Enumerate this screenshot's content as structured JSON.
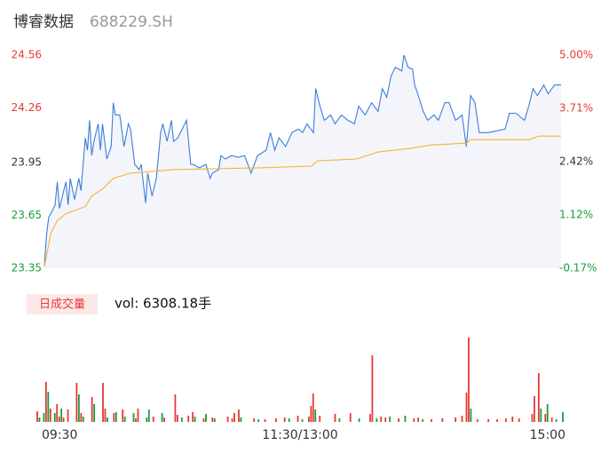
{
  "chart_data": [
    {
      "type": "line",
      "title": "博睿数据",
      "subtitle": "688229.SH",
      "xlim": [
        0,
        240
      ],
      "ylim": [
        23.35,
        24.56
      ],
      "yticks": [
        24.56,
        24.26,
        23.95,
        23.65,
        23.35
      ],
      "ytick_colors": [
        "#e53935",
        "#e53935",
        "#333333",
        "#1a9c3c",
        "#1a9c3c"
      ],
      "y2lim": [
        -0.17,
        5.0
      ],
      "y2ticks": [
        {
          "value": 5.0,
          "label": "5.00%"
        },
        {
          "value": 3.71,
          "label": "3.71%"
        },
        {
          "value": 2.42,
          "label": "2.42%"
        },
        {
          "value": 1.12,
          "label": "1.12%"
        },
        {
          "value": -0.17,
          "label": "-0.17%"
        }
      ],
      "fill": "#f3f5fa",
      "series": [
        {
          "color": "#3b7ddd",
          "fill": true,
          "x": [
            0,
            1,
            2,
            3,
            5,
            6,
            7,
            9,
            10,
            11,
            12,
            14,
            16,
            17,
            19,
            20,
            21,
            22,
            23,
            25,
            26,
            27,
            29,
            31,
            32,
            33,
            35,
            37,
            39,
            40,
            42,
            44,
            45,
            47,
            48,
            50,
            52,
            54,
            55,
            57,
            59,
            60,
            62,
            64,
            66,
            68,
            69,
            72,
            75,
            77,
            78,
            81,
            82,
            84,
            87,
            90,
            93,
            96,
            99,
            103,
            105,
            107,
            109,
            112,
            115,
            118,
            120,
            122,
            125,
            126,
            128,
            130,
            133,
            135,
            138,
            141,
            144,
            146,
            149,
            152,
            155,
            157,
            159,
            161,
            163,
            166,
            167,
            169,
            171,
            172,
            174,
            176,
            178,
            181,
            183,
            186,
            188,
            191,
            194,
            196,
            198,
            200,
            202,
            206,
            210,
            214,
            216,
            219,
            223,
            225,
            227,
            229,
            232,
            234,
            237,
            240
          ],
          "values": [
            23.36,
            23.54,
            23.64,
            23.66,
            23.71,
            23.84,
            23.69,
            23.79,
            23.84,
            23.71,
            23.86,
            23.74,
            23.86,
            23.79,
            24.09,
            24.02,
            24.19,
            23.99,
            24.07,
            24.17,
            24.02,
            24.17,
            23.97,
            24.04,
            24.29,
            24.22,
            24.22,
            24.04,
            24.17,
            24.14,
            23.94,
            23.91,
            23.94,
            23.72,
            23.89,
            23.76,
            23.86,
            24.12,
            24.17,
            24.07,
            24.19,
            24.07,
            24.09,
            24.14,
            24.19,
            23.94,
            23.94,
            23.92,
            23.94,
            23.86,
            23.89,
            23.91,
            23.99,
            23.97,
            23.99,
            23.98,
            23.99,
            23.89,
            23.99,
            24.02,
            24.12,
            24.02,
            24.09,
            24.04,
            24.12,
            24.14,
            24.12,
            24.17,
            24.12,
            24.37,
            24.27,
            24.19,
            24.22,
            24.17,
            24.22,
            24.19,
            24.17,
            24.27,
            24.22,
            24.29,
            24.24,
            24.37,
            24.32,
            24.44,
            24.49,
            24.47,
            24.56,
            24.49,
            24.48,
            24.39,
            24.32,
            24.24,
            24.19,
            24.22,
            24.19,
            24.29,
            24.29,
            24.19,
            24.22,
            24.04,
            24.33,
            24.29,
            24.12,
            24.12,
            24.13,
            24.14,
            24.23,
            24.23,
            24.19,
            24.27,
            24.37,
            24.33,
            24.39,
            24.34,
            24.39,
            24.39
          ]
        },
        {
          "color": "#f5b335",
          "fill": false,
          "x": [
            0,
            3,
            6,
            10,
            19,
            22,
            27,
            32,
            40,
            60,
            100,
            124,
            127,
            145,
            155,
            170,
            180,
            196,
            198,
            225,
            230,
            240
          ],
          "values": [
            23.36,
            23.55,
            23.62,
            23.66,
            23.7,
            23.76,
            23.8,
            23.86,
            23.89,
            23.91,
            23.92,
            23.93,
            23.96,
            23.97,
            24.01,
            24.03,
            24.05,
            24.06,
            24.08,
            24.08,
            24.1,
            24.1
          ]
        }
      ]
    },
    {
      "type": "bar",
      "title": "日成交量",
      "subtitle": "vol: 6308.18手",
      "xlim": [
        0,
        240
      ],
      "ylim": [
        0,
        400
      ],
      "xticks": [
        {
          "value": 0,
          "label": "09:30"
        },
        {
          "value": 120,
          "label": "11:30/13:00"
        },
        {
          "value": 240,
          "label": "15:00"
        }
      ],
      "x": [
        0,
        1,
        3,
        4,
        5,
        6,
        8,
        9,
        10,
        11,
        12,
        14,
        18,
        19,
        20,
        21,
        25,
        26,
        30,
        31,
        32,
        35,
        36,
        39,
        40,
        44,
        45,
        46,
        50,
        51,
        53,
        57,
        58,
        63,
        64,
        66,
        69,
        71,
        72,
        76,
        77,
        80,
        81,
        87,
        89,
        90,
        92,
        93,
        99,
        101,
        104,
        109,
        113,
        115,
        119,
        121,
        124,
        125,
        126,
        127,
        129,
        136,
        138,
        143,
        147,
        152,
        153,
        155,
        157,
        159,
        161,
        165,
        168,
        172,
        174,
        176,
        180,
        185,
        191,
        194,
        196,
        197,
        198,
        201,
        206,
        210,
        214,
        217,
        220,
        226,
        227,
        229,
        230,
        232,
        233,
        235,
        237,
        240
      ],
      "values": [
        48,
        20,
        40,
        180,
        136,
        60,
        40,
        80,
        24,
        60,
        20,
        56,
        176,
        124,
        40,
        24,
        112,
        80,
        176,
        60,
        20,
        40,
        44,
        56,
        24,
        40,
        16,
        60,
        20,
        56,
        24,
        40,
        20,
        124,
        32,
        20,
        28,
        44,
        24,
        16,
        36,
        20,
        16,
        24,
        16,
        40,
        56,
        20,
        16,
        12,
        12,
        16,
        20,
        16,
        28,
        12,
        24,
        72,
        128,
        56,
        28,
        36,
        16,
        40,
        16,
        36,
        300,
        16,
        24,
        20,
        24,
        16,
        28,
        16,
        20,
        12,
        12,
        16,
        20,
        28,
        132,
        380,
        60,
        12,
        12,
        12,
        16,
        24,
        16,
        36,
        116,
        220,
        60,
        36,
        80,
        20,
        12,
        44
      ],
      "colors": [
        "#e53935",
        "#1a9c3c",
        "#1a9c3c",
        "#e53935",
        "#1a9c3c",
        "#e53935",
        "#1a9c3c",
        "#e53935",
        "#e53935",
        "#1a9c3c",
        "#e53935",
        "#e53935",
        "#e53935",
        "#1a9c3c",
        "#e53935",
        "#1a9c3c",
        "#e53935",
        "#1a9c3c",
        "#e53935",
        "#e53935",
        "#1a9c3c",
        "#e53935",
        "#1a9c3c",
        "#e53935",
        "#1a9c3c",
        "#1a9c3c",
        "#e53935",
        "#e53935",
        "#1a9c3c",
        "#1a9c3c",
        "#e53935",
        "#1a9c3c",
        "#e53935",
        "#e53935",
        "#e53935",
        "#1a9c3c",
        "#e53935",
        "#e53935",
        "#1a9c3c",
        "#e53935",
        "#1a9c3c",
        "#e53935",
        "#1a9c3c",
        "#e53935",
        "#e53935",
        "#e53935",
        "#e53935",
        "#1a9c3c",
        "#e53935",
        "#1a9c3c",
        "#e53935",
        "#e53935",
        "#e53935",
        "#1a9c3c",
        "#e53935",
        "#1a9c3c",
        "#e53935",
        "#e53935",
        "#e53935",
        "#1a9c3c",
        "#e53935",
        "#e53935",
        "#1a9c3c",
        "#e53935",
        "#1a9c3c",
        "#e53935",
        "#e53935",
        "#1a9c3c",
        "#e53935",
        "#e53935",
        "#1a9c3c",
        "#e53935",
        "#1a9c3c",
        "#e53935",
        "#e53935",
        "#1a9c3c",
        "#e53935",
        "#e53935",
        "#e53935",
        "#e53935",
        "#e53935",
        "#e53935",
        "#1a9c3c",
        "#e53935",
        "#e53935",
        "#e53935",
        "#e53935",
        "#e53935",
        "#e53935",
        "#e53935",
        "#e53935",
        "#e53935",
        "#1a9c3c",
        "#e53935",
        "#1a9c3c",
        "#e53935",
        "#1a9c3c",
        "#1a9c3c"
      ]
    }
  ]
}
